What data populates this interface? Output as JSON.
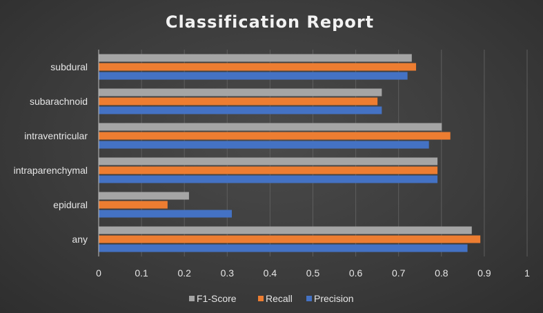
{
  "chart_data": {
    "type": "bar",
    "orientation": "horizontal",
    "title": "Classification Report",
    "categories": [
      "any",
      "epidural",
      "intraparenchymal",
      "intraventricular",
      "subarachnoid",
      "subdural"
    ],
    "series": [
      {
        "name": "Precision",
        "values": [
          0.86,
          0.31,
          0.79,
          0.77,
          0.66,
          0.72
        ]
      },
      {
        "name": "Recall",
        "values": [
          0.89,
          0.16,
          0.79,
          0.82,
          0.65,
          0.74
        ]
      },
      {
        "name": "F1-Score",
        "values": [
          0.87,
          0.21,
          0.79,
          0.8,
          0.66,
          0.73
        ]
      }
    ],
    "colors": {
      "Precision": "#4472c4",
      "Recall": "#ed7d31",
      "F1-Score": "#a5a5a5"
    },
    "xlim": [
      0,
      1
    ],
    "xticks": [
      "0",
      "0.1",
      "0.2",
      "0.3",
      "0.4",
      "0.5",
      "0.6",
      "0.7",
      "0.8",
      "0.9",
      "1"
    ],
    "legend": {
      "position": "bottom",
      "order": [
        "F1-Score",
        "Recall",
        "Precision"
      ]
    },
    "grid": true
  }
}
